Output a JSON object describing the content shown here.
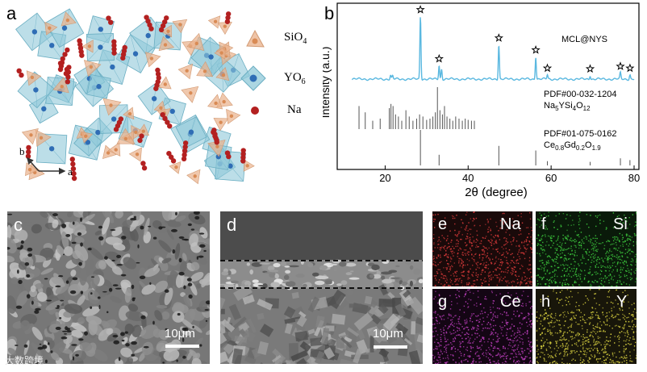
{
  "panel_a": {
    "label": "a",
    "legend": [
      {
        "text": "SiO",
        "sub": "4"
      },
      {
        "text": "YO",
        "sub": "6"
      },
      {
        "text": "Na",
        "sub": ""
      }
    ],
    "axes": {
      "b": "b",
      "a": "a"
    },
    "colors": {
      "sio4": "#e9b08a",
      "yo6": "#8fc8d8",
      "na": "#b32020",
      "y_atom": "#2f6db5"
    }
  },
  "panel_b": {
    "label": "b",
    "chart_data": {
      "type": "line",
      "xlabel": "2θ (degree)",
      "ylabel": "Intensity (a.u.)",
      "xlim": [
        10,
        80
      ],
      "xticks": [
        20,
        40,
        60,
        80
      ],
      "grid": false,
      "series": [
        {
          "name": "MCL@NYS",
          "color": "#5ab8e0",
          "peaks": [
            {
              "x": 28.5,
              "rel": 1.0
            },
            {
              "x": 33.0,
              "rel": 0.22
            },
            {
              "x": 33.6,
              "rel": 0.16
            },
            {
              "x": 47.4,
              "rel": 0.55
            },
            {
              "x": 56.3,
              "rel": 0.36
            },
            {
              "x": 59.1,
              "rel": 0.07
            },
            {
              "x": 69.4,
              "rel": 0.06
            },
            {
              "x": 76.7,
              "rel": 0.1
            },
            {
              "x": 79.0,
              "rel": 0.07
            },
            {
              "x": 21.3,
              "rel": 0.06
            },
            {
              "x": 21.8,
              "rel": 0.05
            }
          ],
          "starred": [
            28.5,
            33.0,
            47.4,
            56.3,
            59.1,
            69.4,
            76.7,
            79.0
          ]
        }
      ],
      "references": [
        {
          "id": "PDF#00-032-1204",
          "formula": [
            {
              "t": "Na"
            },
            {
              "t": "5",
              "sub": true
            },
            {
              "t": "YSi"
            },
            {
              "t": "4",
              "sub": true
            },
            {
              "t": "O"
            },
            {
              "t": "12",
              "sub": true
            }
          ],
          "color": "#555555",
          "lines": [
            [
              13.7,
              0.55
            ],
            [
              15.2,
              0.4
            ],
            [
              17.0,
              0.2
            ],
            [
              18.8,
              0.25
            ],
            [
              21.0,
              0.5
            ],
            [
              21.4,
              0.6
            ],
            [
              21.9,
              0.55
            ],
            [
              22.5,
              0.35
            ],
            [
              23.2,
              0.3
            ],
            [
              24.0,
              0.2
            ],
            [
              25.0,
              0.45
            ],
            [
              25.8,
              0.3
            ],
            [
              26.7,
              0.2
            ],
            [
              27.6,
              0.25
            ],
            [
              28.3,
              0.35
            ],
            [
              29.1,
              0.3
            ],
            [
              30.0,
              0.22
            ],
            [
              30.8,
              0.25
            ],
            [
              31.5,
              0.3
            ],
            [
              32.1,
              0.4
            ],
            [
              32.6,
              1.0
            ],
            [
              33.2,
              0.45
            ],
            [
              33.8,
              0.35
            ],
            [
              34.3,
              0.55
            ],
            [
              34.9,
              0.3
            ],
            [
              35.6,
              0.25
            ],
            [
              36.3,
              0.2
            ],
            [
              37.0,
              0.3
            ],
            [
              37.8,
              0.25
            ],
            [
              38.6,
              0.2
            ],
            [
              39.3,
              0.25
            ],
            [
              40.0,
              0.22
            ],
            [
              40.8,
              0.2
            ],
            [
              41.5,
              0.2
            ]
          ]
        },
        {
          "id": "PDF#01-075-0162",
          "formula": [
            {
              "t": "Ce"
            },
            {
              "t": "0.8",
              "sub": true
            },
            {
              "t": "Gd"
            },
            {
              "t": "0.2",
              "sub": true
            },
            {
              "t": "O"
            },
            {
              "t": "1.9",
              "sub": true
            }
          ],
          "color": "#555555",
          "lines": [
            [
              28.5,
              1.0
            ],
            [
              33.0,
              0.3
            ],
            [
              47.4,
              0.55
            ],
            [
              56.3,
              0.42
            ],
            [
              59.1,
              0.12
            ],
            [
              69.4,
              0.1
            ],
            [
              76.7,
              0.2
            ],
            [
              79.0,
              0.15
            ]
          ]
        }
      ]
    }
  },
  "panel_c": {
    "label": "c",
    "scale": "10μm"
  },
  "panel_d": {
    "label": "d",
    "scale": "10μm"
  },
  "panel_eds": [
    {
      "label": "e",
      "element": "Na",
      "color": "#d83a3a"
    },
    {
      "label": "f",
      "element": "Si",
      "color": "#3fcf3f"
    },
    {
      "label": "g",
      "element": "Ce",
      "color": "#c040c0"
    },
    {
      "label": "h",
      "element": "Y",
      "color": "#d8d040"
    }
  ],
  "watermark": "大数跨境"
}
